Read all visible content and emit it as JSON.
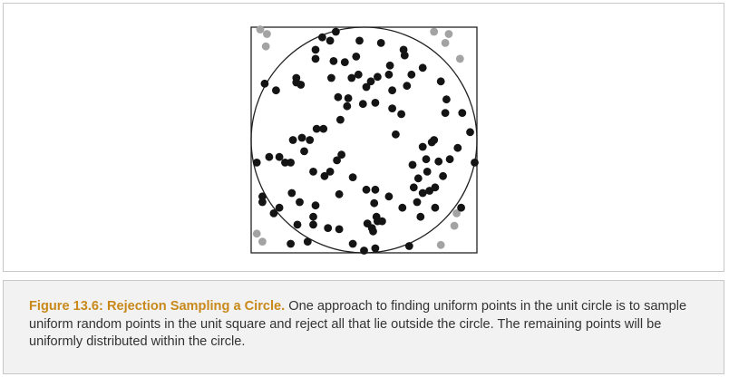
{
  "figure": {
    "label": "Figure 13.6: Rejection Sampling a Circle.",
    "caption": " One approach to finding uniform points in the unit circle is to sample uniform random points in the unit square and reject all that lie outside the circle. The remaining points will be uniformly distributed within the circle."
  },
  "diagram": {
    "colors": {
      "accepted": "#141414",
      "rejected": "#a3a3a3",
      "outline": "#222222"
    },
    "accepted_points": [
      [
        -0.25,
        0.96
      ],
      [
        -0.37,
        0.91
      ],
      [
        -0.3,
        0.88
      ],
      [
        -0.04,
        0.88
      ],
      [
        0.15,
        0.86
      ],
      [
        0.35,
        0.8
      ],
      [
        -0.43,
        0.8
      ],
      [
        -0.43,
        0.72
      ],
      [
        -0.27,
        0.7
      ],
      [
        -0.17,
        0.69
      ],
      [
        -0.07,
        0.74
      ],
      [
        0.36,
        0.75
      ],
      [
        0.23,
        0.66
      ],
      [
        0.52,
        0.64
      ],
      [
        -0.29,
        0.55
      ],
      [
        -0.6,
        0.55
      ],
      [
        0.22,
        0.58
      ],
      [
        0.42,
        0.58
      ],
      [
        -0.05,
        0.58
      ],
      [
        -0.11,
        0.55
      ],
      [
        0.12,
        0.56
      ],
      [
        0.02,
        0.47
      ],
      [
        0.06,
        0.52
      ],
      [
        -0.6,
        0.51
      ],
      [
        -0.56,
        0.49
      ],
      [
        -0.88,
        0.5
      ],
      [
        -0.78,
        0.44
      ],
      [
        -0.23,
        0.38
      ],
      [
        -0.14,
        0.37
      ],
      [
        -0.15,
        0.3
      ],
      [
        -0.01,
        0.32
      ],
      [
        0.1,
        0.33
      ],
      [
        0.25,
        0.44
      ],
      [
        0.38,
        0.48
      ],
      [
        0.68,
        0.52
      ],
      [
        0.73,
        0.36
      ],
      [
        0.72,
        0.24
      ],
      [
        0.87,
        0.24
      ],
      [
        -0.21,
        0.18
      ],
      [
        -0.36,
        0.1
      ],
      [
        -0.42,
        0.1
      ],
      [
        -0.48,
        0.0
      ],
      [
        -0.55,
        0.02
      ],
      [
        -0.63,
        0.0
      ],
      [
        -0.75,
        -0.15
      ],
      [
        -0.84,
        -0.15
      ],
      [
        -0.95,
        -0.2
      ],
      [
        -0.65,
        -0.2
      ],
      [
        0.25,
        0.28
      ],
      [
        0.28,
        0.05
      ],
      [
        0.33,
        0.23
      ],
      [
        0.52,
        -0.06
      ],
      [
        0.62,
        0.0
      ],
      [
        0.76,
        -0.17
      ],
      [
        0.66,
        -0.19
      ],
      [
        0.7,
        -0.32
      ],
      [
        0.63,
        -0.42
      ],
      [
        0.83,
        -0.07
      ],
      [
        0.56,
        -0.28
      ],
      [
        0.48,
        -0.34
      ],
      [
        0.52,
        -0.47
      ],
      [
        0.63,
        -0.6
      ],
      [
        0.86,
        -0.6
      ],
      [
        0.94,
        0.07
      ],
      [
        0.98,
        -0.2
      ],
      [
        -0.3,
        -0.28
      ],
      [
        -0.2,
        -0.13
      ],
      [
        -0.24,
        -0.18
      ],
      [
        -0.1,
        -0.33
      ],
      [
        -0.22,
        -0.48
      ],
      [
        -0.64,
        -0.47
      ],
      [
        -0.57,
        -0.55
      ],
      [
        -0.8,
        -0.65
      ],
      [
        -0.9,
        -0.55
      ],
      [
        -0.59,
        -0.75
      ],
      [
        -0.45,
        -0.75
      ],
      [
        -0.32,
        -0.78
      ],
      [
        -0.22,
        -0.79
      ],
      [
        -0.43,
        -0.58
      ],
      [
        0.02,
        -0.44
      ],
      [
        0.1,
        -0.44
      ],
      [
        0.09,
        -0.56
      ],
      [
        0.22,
        -0.5
      ],
      [
        0.5,
        -0.68
      ],
      [
        0.47,
        -0.55
      ],
      [
        0.44,
        -0.42
      ],
      [
        0.34,
        -0.6
      ],
      [
        0.08,
        -0.81
      ],
      [
        -0.5,
        -0.9
      ],
      [
        -0.45,
        -0.68
      ],
      [
        -0.1,
        -0.92
      ],
      [
        0.12,
        -0.72
      ],
      [
        0.16,
        -0.72
      ],
      [
        0.11,
        -0.68
      ],
      [
        0.03,
        -0.74
      ],
      [
        0.07,
        -0.78
      ],
      [
        0.0,
        -0.98
      ],
      [
        0.1,
        -0.96
      ],
      [
        0.4,
        -0.94
      ],
      [
        -0.65,
        -0.92
      ],
      [
        -0.75,
        -0.6
      ],
      [
        -0.7,
        -0.2
      ],
      [
        -0.53,
        -0.1
      ],
      [
        -0.45,
        -0.28
      ],
      [
        0.43,
        -0.22
      ],
      [
        0.55,
        -0.17
      ],
      [
        0.58,
        -0.45
      ],
      [
        0.6,
        -0.02
      ],
      [
        -0.9,
        -0.5
      ],
      [
        -0.35,
        -0.32
      ]
    ],
    "rejected_points": [
      [
        -0.92,
        0.98
      ],
      [
        -0.86,
        0.94
      ],
      [
        0.62,
        0.96
      ],
      [
        0.75,
        0.94
      ],
      [
        0.72,
        0.86
      ],
      [
        -0.87,
        0.83
      ],
      [
        0.85,
        0.72
      ],
      [
        0.82,
        -0.65
      ],
      [
        0.8,
        -0.76
      ],
      [
        0.68,
        -0.93
      ],
      [
        -0.9,
        -0.9
      ],
      [
        -0.95,
        -0.83
      ]
    ]
  }
}
